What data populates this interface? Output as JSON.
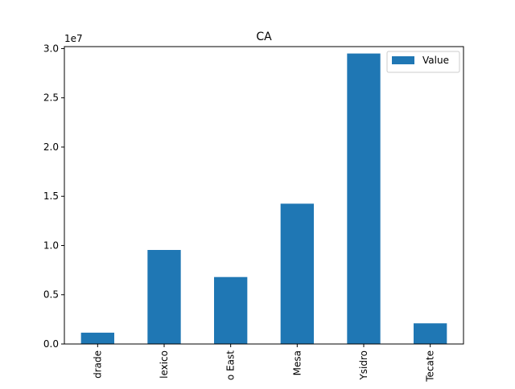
{
  "chart_data": {
    "type": "bar",
    "title": "CA",
    "xlabel": "",
    "ylabel": "",
    "categories": [
      "drade",
      "lexico",
      "o East",
      "Mesa",
      "Ysidro",
      "Tecate"
    ],
    "series": [
      {
        "name": "Value",
        "values": [
          1150000,
          9550000,
          6800000,
          14250000,
          29500000,
          2100000
        ]
      }
    ],
    "ylim": [
      0,
      30200000
    ],
    "y_tick_values": [
      0,
      5000000,
      10000000,
      15000000,
      20000000,
      25000000,
      30000000
    ],
    "y_tick_labels": [
      "0.0",
      "0.5",
      "1.0",
      "1.5",
      "2.0",
      "2.5",
      "3.0"
    ],
    "y_scale_label": "1e7",
    "legend_position": "top-right",
    "grid": false,
    "bar_color": "#1f77b4",
    "x_tick_rotation": -90
  }
}
